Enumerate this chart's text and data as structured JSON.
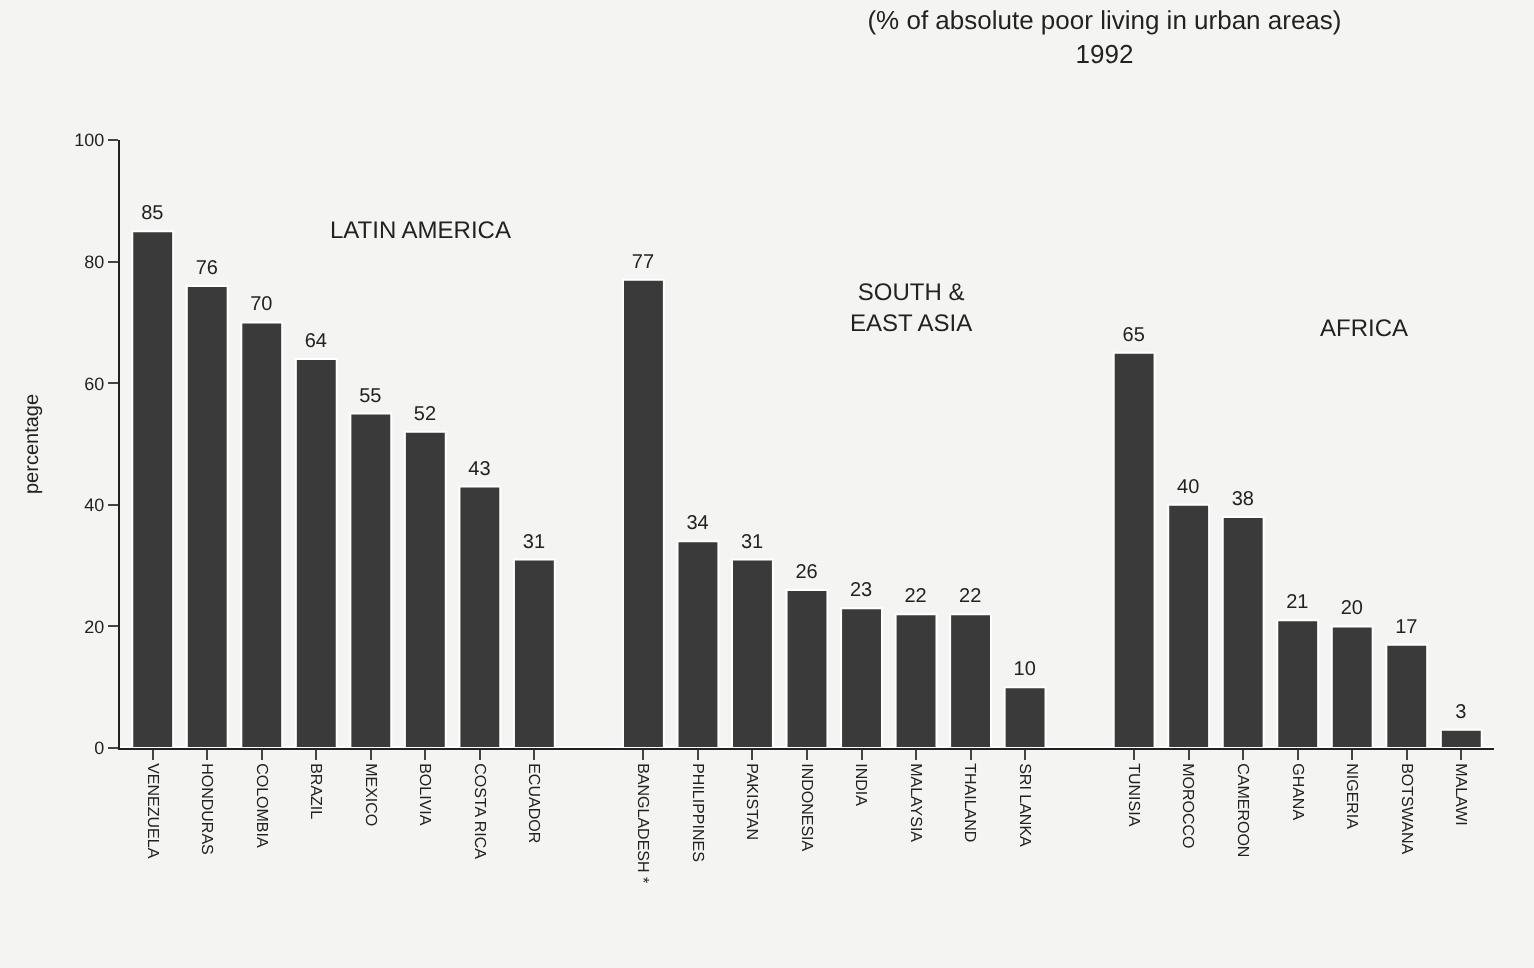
{
  "chart_data": {
    "type": "bar",
    "title": "(% of absolute poor living in urban areas)\n1992",
    "ylabel": "percentage",
    "categories": [
      "VENEZUELA",
      "HONDURAS",
      "COLOMBIA",
      "BRAZIL",
      "MEXICO",
      "BOLIVIA",
      "COSTA RICA",
      "ECUADOR",
      null,
      "BANGLADESH *",
      "PHILIPPINES",
      "PAKISTAN",
      "INDONESIA",
      "INDIA",
      "MALAYSIA",
      "THAILAND",
      "SRI LANKA",
      null,
      "TUNISIA",
      "MOROCCO",
      "CAMEROON",
      "GHANA",
      "NIGERIA",
      "BOTSWANA",
      "MALAWI"
    ],
    "values": [
      85,
      76,
      70,
      64,
      55,
      52,
      43,
      31,
      null,
      77,
      34,
      31,
      26,
      23,
      22,
      22,
      10,
      null,
      65,
      40,
      38,
      21,
      20,
      17,
      3
    ],
    "color": "#3a3a3a",
    "data_labels": true,
    "ylim": [
      0,
      100
    ],
    "yticks": [
      0,
      20,
      40,
      60,
      80,
      100
    ],
    "grid": false,
    "legend": false,
    "annotations": [
      "LATIN AMERICA",
      "SOUTH &\nEAST ASIA",
      "AFRICA"
    ]
  }
}
